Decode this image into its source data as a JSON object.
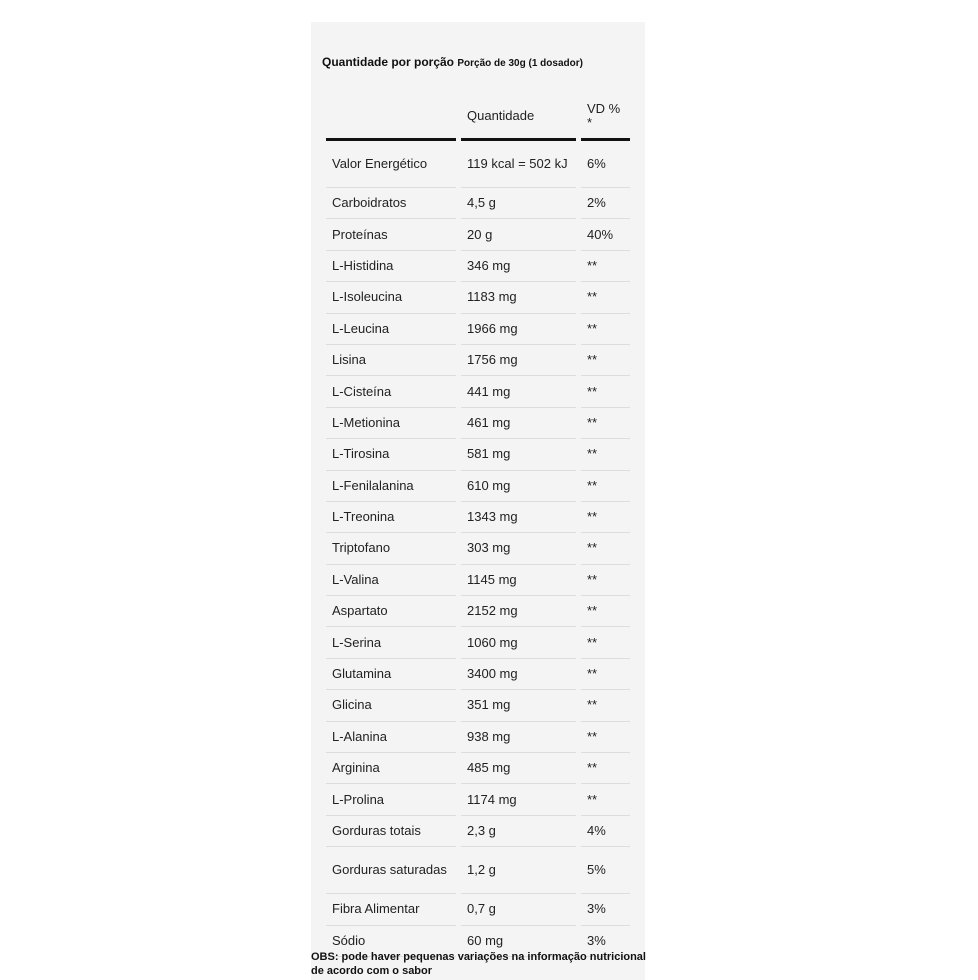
{
  "header": {
    "title": "Quantidade por porção",
    "serving": "Porção de 30g (1 dosador)"
  },
  "table": {
    "columns": [
      "",
      "Quantidade",
      "VD % *"
    ],
    "rows": [
      [
        "Valor Energético",
        "119 kcal = 502 kJ",
        "6%"
      ],
      [
        "Carboidratos",
        "4,5 g",
        "2%"
      ],
      [
        "Proteínas",
        "20 g",
        "40%"
      ],
      [
        "L-Histidina",
        "346 mg",
        "**"
      ],
      [
        "L-Isoleucina",
        "1183 mg",
        "**"
      ],
      [
        "L-Leucina",
        "1966 mg",
        "**"
      ],
      [
        "Lisina",
        "1756 mg",
        "**"
      ],
      [
        "L-Cisteína",
        "441 mg",
        "**"
      ],
      [
        "L-Metionina",
        "461 mg",
        "**"
      ],
      [
        "L-Tirosina",
        "581 mg",
        "**"
      ],
      [
        "L-Fenilalanina",
        "610 mg",
        "**"
      ],
      [
        "L-Treonina",
        "1343 mg",
        "**"
      ],
      [
        "Triptofano",
        "303 mg",
        "**"
      ],
      [
        "L-Valina",
        "1145 mg",
        "**"
      ],
      [
        "Aspartato",
        "2152 mg",
        "**"
      ],
      [
        "L-Serina",
        "1060 mg",
        "**"
      ],
      [
        "Glutamina",
        "3400 mg",
        "**"
      ],
      [
        "Glicina",
        "351 mg",
        "**"
      ],
      [
        "L-Alanina",
        "938 mg",
        "**"
      ],
      [
        "Arginina",
        "485 mg",
        "**"
      ],
      [
        "L-Prolina",
        "1174 mg",
        "**"
      ],
      [
        "Gorduras totais",
        "2,3 g",
        "4%"
      ],
      [
        "Gorduras saturadas",
        "1,2 g",
        "5%"
      ],
      [
        "Fibra Alimentar",
        "0,7 g",
        "3%"
      ],
      [
        "Sódio",
        "60 mg",
        "3%"
      ]
    ]
  },
  "note": "OBS: pode haver pequenas variações na informação nutricional de acordo com o sabor"
}
